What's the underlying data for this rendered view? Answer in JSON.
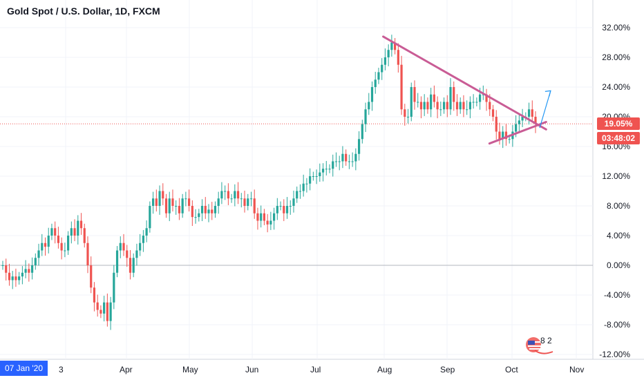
{
  "header": {
    "title": "Gold Spot / U.S. Dollar, 1D, FXCM"
  },
  "colors": {
    "up": "#26a69a",
    "down": "#ef5350",
    "trend": "#c95c95",
    "arrow": "#2196f3",
    "price": "#ef5350"
  },
  "price_axis": {
    "current": "19.05%",
    "countdown": "03:48:02"
  },
  "crosshair": {
    "date": "07 Jan '20"
  },
  "badge": {
    "text": "8 2"
  },
  "chart_data": {
    "type": "candlestick",
    "yunit": "%",
    "ylim": [
      -12,
      34
    ],
    "y_ticks": [
      "32.00%",
      "28.00%",
      "24.00%",
      "20.00%",
      "16.00%",
      "12.00%",
      "8.00%",
      "4.00%",
      "0.00%",
      "-4.00%",
      "-8.00%",
      "-12.00%"
    ],
    "x_ticks": [
      "3",
      "Apr",
      "May",
      "Jun",
      "Jul",
      "Aug",
      "Sep",
      "Oct",
      "Nov"
    ],
    "close_series": [
      0,
      -1,
      -2,
      -1.5,
      -2,
      -1.5,
      -1,
      -0.5,
      -1,
      0,
      1,
      2,
      3,
      2.5,
      4,
      5,
      4,
      3,
      2,
      2,
      4,
      5,
      4,
      6,
      5,
      3,
      0,
      -3,
      -5,
      -6,
      -6.5,
      -5,
      -7.5,
      -5,
      -1,
      2,
      3,
      2,
      1,
      -1,
      1,
      2,
      3,
      4,
      5,
      8,
      9,
      8,
      10,
      9,
      7,
      9,
      8,
      8,
      7,
      9,
      9,
      8,
      6.5,
      6.5,
      7,
      8,
      7,
      7.5,
      7,
      8,
      9,
      10,
      10,
      9,
      9,
      10,
      9,
      9,
      8,
      9,
      9,
      7,
      6,
      7,
      6,
      5.5,
      6,
      7,
      8,
      8,
      7,
      8,
      8,
      9,
      10,
      10,
      11,
      11,
      12,
      12,
      12,
      12.5,
      13,
      13,
      13,
      14,
      14,
      14,
      15,
      14,
      14,
      14,
      15,
      17,
      19,
      21,
      22,
      24,
      25,
      26,
      27,
      28,
      29,
      30,
      29,
      27,
      21,
      20,
      20,
      24,
      22,
      22,
      21,
      22,
      21,
      23,
      22,
      21,
      21,
      22,
      21,
      24,
      22,
      21,
      22,
      21,
      21,
      22,
      22,
      22,
      23,
      23,
      22,
      21,
      20,
      18,
      17,
      18,
      17,
      17,
      18,
      19,
      19.5,
      20,
      20,
      21,
      20,
      19
    ],
    "annotations": [
      {
        "type": "trendline",
        "label": "upper",
        "x": [
          0.595,
          0.848
        ],
        "y": [
          30.8,
          18.3
        ]
      },
      {
        "type": "trendline",
        "label": "lower",
        "x": [
          0.76,
          0.848
        ],
        "y": [
          16.4,
          19.3
        ]
      },
      {
        "type": "arrow",
        "x": [
          0.838,
          0.855
        ],
        "y": [
          18.5,
          23.5
        ]
      },
      {
        "type": "hline",
        "y": 19.05,
        "label": "current"
      },
      {
        "type": "hline",
        "y": 0,
        "label": "zero"
      }
    ]
  }
}
